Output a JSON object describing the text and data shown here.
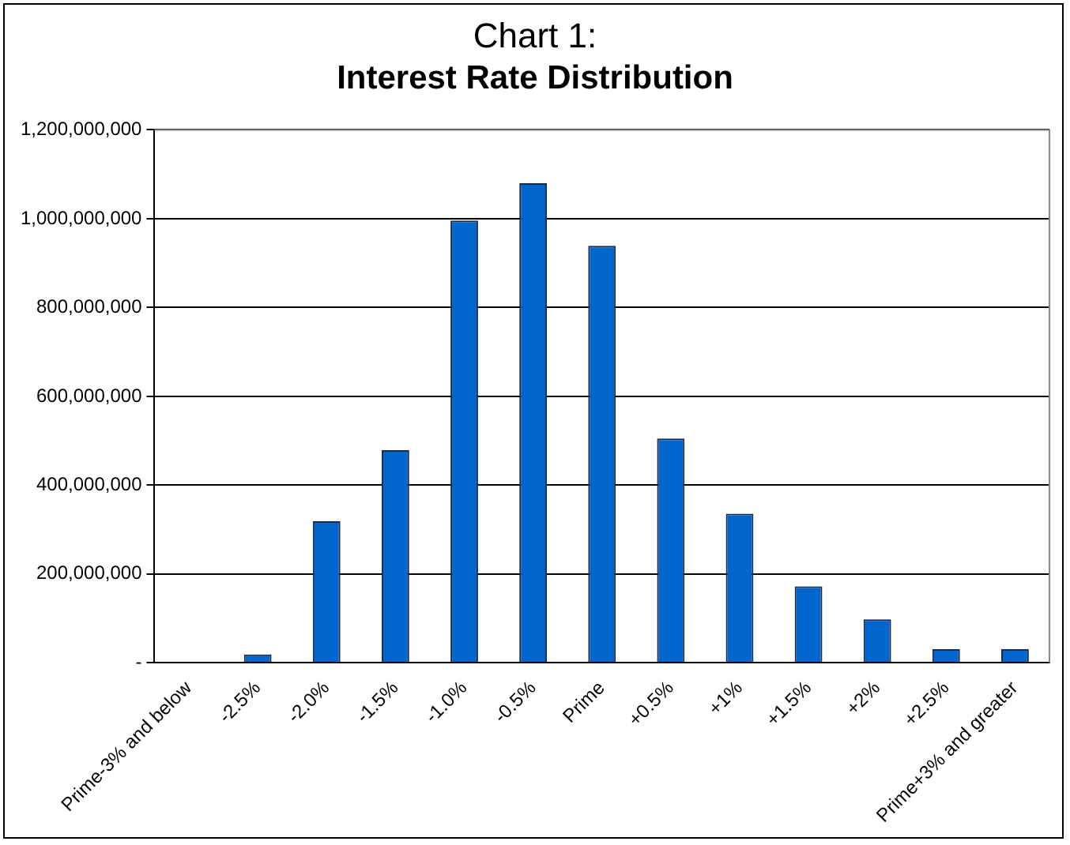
{
  "chart_data": {
    "type": "bar",
    "title": "Chart 1:",
    "subtitle": "Interest Rate Distribution",
    "categories": [
      "Prime-3% and below",
      "-2.5%",
      "-2.0%",
      "-1.5%",
      "-1.0%",
      "-0.5%",
      "Prime",
      "+0.5%",
      "+1%",
      "+1.5%",
      "+2%",
      "+2.5%",
      "Prime+3% and greater"
    ],
    "values": [
      0,
      19000000,
      319000000,
      479000000,
      996000000,
      1080000000,
      939000000,
      505000000,
      336000000,
      172000000,
      98000000,
      31000000,
      31000000
    ],
    "color": "#0066cc",
    "ylim": [
      0,
      1200000000
    ],
    "yticks": [
      {
        "value": 0,
        "label": "-"
      },
      {
        "value": 200000000,
        "label": "200,000,000"
      },
      {
        "value": 400000000,
        "label": "400,000,000"
      },
      {
        "value": 600000000,
        "label": "600,000,000"
      },
      {
        "value": 800000000,
        "label": "800,000,000"
      },
      {
        "value": 1000000000,
        "label": "1,000,000,000"
      },
      {
        "value": 1200000000,
        "label": "1,200,000,000"
      }
    ],
    "grid": "y",
    "legend": false
  }
}
